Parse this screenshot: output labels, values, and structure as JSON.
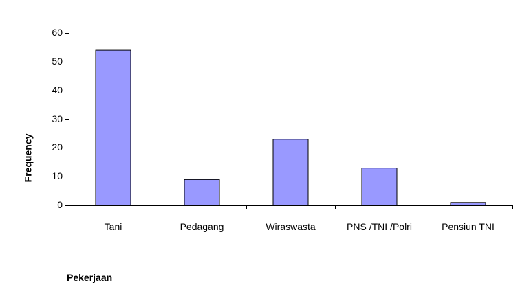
{
  "chart_data": {
    "type": "bar",
    "y_label": "Frequency",
    "x_label": "Pekerjaan",
    "categories": [
      "Tani",
      "Pedagang",
      "Wiraswasta",
      "PNS /TNI /Polri",
      "Pensiun TNI"
    ],
    "values": [
      54,
      9,
      23,
      13,
      1
    ],
    "color": "#9999ff",
    "ylim": [
      0,
      60
    ],
    "yticks": [
      0,
      10,
      20,
      30,
      40,
      50,
      60
    ],
    "grid": false
  }
}
